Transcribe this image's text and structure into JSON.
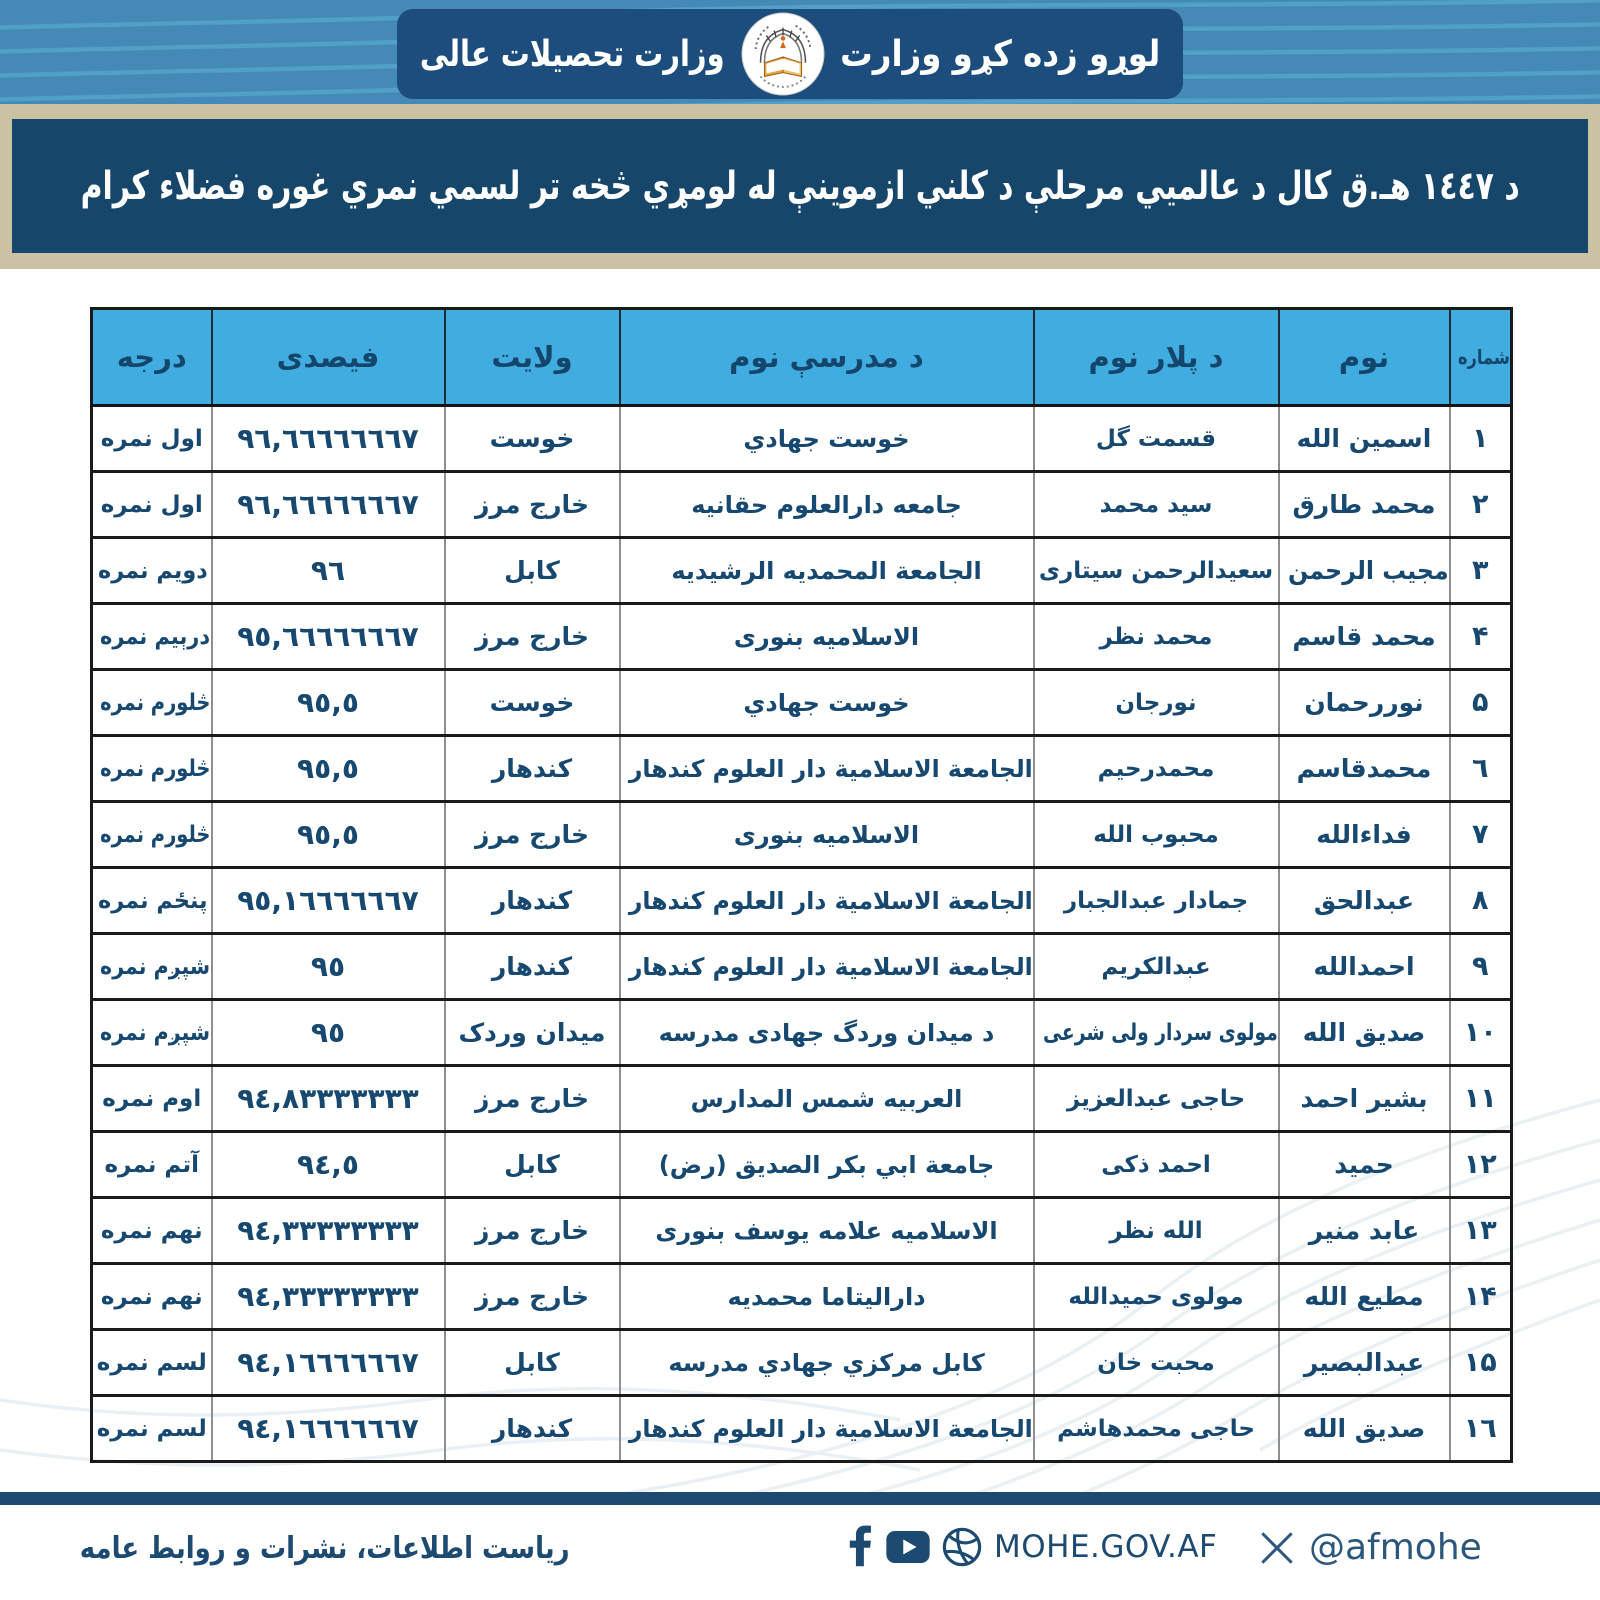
{
  "header": {
    "title_right": "لوړو زده کړو وزارت",
    "title_left": "وزارت تحصیلات عالی"
  },
  "banner": {
    "text": "د ١٤٤٧ هـ.ق کال د عالمیي مرحلې د کلني ازموینې له لومړي څخه تر لسمي نمري غوره فضلاء کرام"
  },
  "table": {
    "headers": [
      "شماره",
      "نوم",
      "د پلار نوم",
      "د مدرسې نوم",
      "ولایت",
      "فیصدی",
      "درجه"
    ],
    "rows": [
      [
        "١",
        "اسمین الله",
        "قسمت گل",
        "خوست جهادي",
        "خوست",
        "٩٦,٦٦٦٦٦٦٦٧",
        "اول نمره"
      ],
      [
        "٢",
        "محمد طارق",
        "سید محمد",
        "جامعه دارالعلوم حقانیه",
        "خارج مرز",
        "٩٦,٦٦٦٦٦٦٦٧",
        "اول نمره"
      ],
      [
        "٣",
        "مجیب الرحمن",
        "سعیدالرحمن سیتاری",
        "الجامعة المحمدیه الرشیدیه",
        "کابل",
        "٩٦",
        "دویم نمره"
      ],
      [
        "۴",
        "محمد قاسم",
        "محمد نظر",
        "الاسلامیه بنوری",
        "خارج مرز",
        "٩٥,٦٦٦٦٦٦٦٧",
        "درېیم نمره"
      ],
      [
        "۵",
        "نوررحمان",
        "نورجان",
        "خوست جهادي",
        "خوست",
        "٩٥,٥",
        "څلورم نمره"
      ],
      [
        "٦",
        "محمدقاسم",
        "محمدرحیم",
        "الجامعة الاسلامیة دار العلوم کندهار",
        "کندهار",
        "٩٥,٥",
        "څلورم نمره"
      ],
      [
        "٧",
        "فداءالله",
        "محبوب الله",
        "الاسلامیه بنوری",
        "خارج مرز",
        "٩٥,٥",
        "څلورم نمره"
      ],
      [
        "٨",
        "عبدالحق",
        "جمادار عبدالجبار",
        "الجامعة الاسلامیة دار العلوم کندهار",
        "کندهار",
        "٩٥,١٦٦٦٦٦٦٧",
        "پنځم نمره"
      ],
      [
        "٩",
        "احمدالله",
        "عبدالکریم",
        "الجامعة الاسلامیة دار العلوم کندهار",
        "کندهار",
        "٩٥",
        "شپږم نمره"
      ],
      [
        "١٠",
        "صدیق الله",
        "مولوی سردار ولی شرعی",
        "د میدان وردگ جهادی مدرسه",
        "میدان وردک",
        "٩٥",
        "شپږم نمره"
      ],
      [
        "١١",
        "بشیر احمد",
        "حاجی عبدالعزیز",
        "العربیه شمس المدارس",
        "خارج مرز",
        "٩٤,٨٣٣٣٣٣٣٣",
        "اوم نمره"
      ],
      [
        "١٢",
        "حمید",
        "احمد ذکی",
        "جامعة ابي بکر الصدیق (رض)",
        "کابل",
        "٩٤,٥",
        "آتم نمره"
      ],
      [
        "١٣",
        "عابد منیر",
        "الله نظر",
        "الاسلامیه علامه یوسف بنوری",
        "خارج مرز",
        "٩٤,٣٣٣٣٣٣٣٣",
        "نهم نمره"
      ],
      [
        "١۴",
        "مطیع الله",
        "مولوی حمیدالله",
        "دارالیتاما محمدیه",
        "خارج مرز",
        "٩٤,٣٣٣٣٣٣٣٣",
        "نهم نمره"
      ],
      [
        "١۵",
        "عبدالبصیر",
        "محبت خان",
        "کابل مرکزي جهادي مدرسه",
        "کابل",
        "٩٤,١٦٦٦٦٦٦٧",
        "لسم نمره"
      ],
      [
        "١٦",
        "صدیق الله",
        "حاجی محمدهاشم",
        "الجامعة الاسلامیة دار العلوم کندهار",
        "کندهار",
        "٩٤,١٦٦٦٦٦٦٧",
        "لسم نمره"
      ]
    ]
  },
  "footer": {
    "department": "ریاست اطلاعات، نشرات و روابط عامه",
    "website": "MOHE.GOV.AF",
    "x_handle": "@afmohe"
  },
  "colors": {
    "band_blue": "#4589b6",
    "stripe_blue": "#54a1c8",
    "pill_navy": "#1d4d7c",
    "beige": "#cbc2a3",
    "banner_navy": "#17466b",
    "header_blue": "#41ace0",
    "ink_navy": "#17486f",
    "footer_navy": "#1d4a70"
  }
}
